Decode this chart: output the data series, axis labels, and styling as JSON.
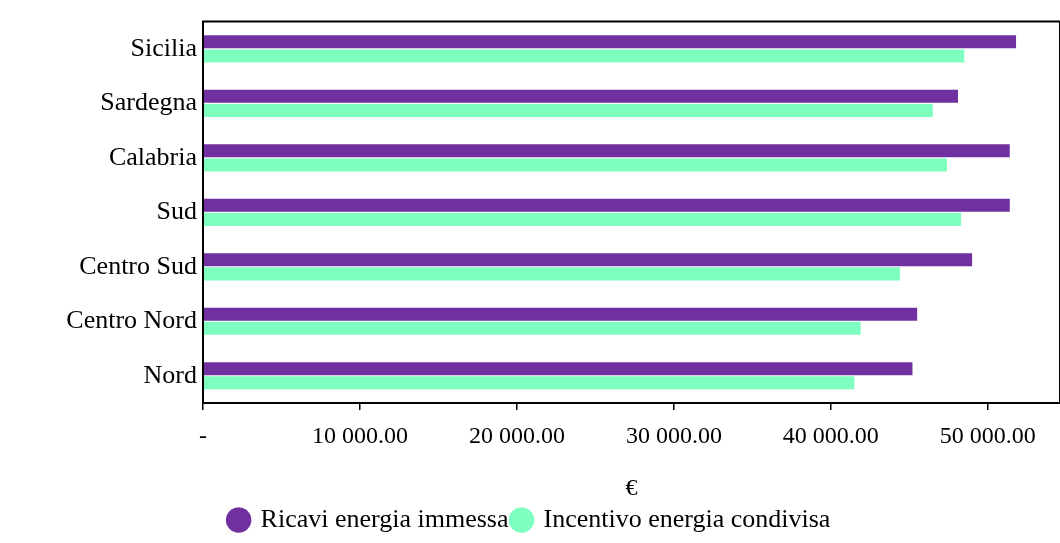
{
  "chart_data": {
    "type": "bar",
    "orientation": "horizontal",
    "xlabel": "€",
    "categories": [
      "Sicilia",
      "Sardegna",
      "Calabria",
      "Sud",
      "Centro Sud",
      "Centro Nord",
      "Nord"
    ],
    "series": [
      {
        "name": "Ricavi energia immessa",
        "color": "#7030a0",
        "values": [
          51800,
          48100,
          51400,
          51400,
          49000,
          45500,
          45200
        ]
      },
      {
        "name": "Incentivo energia condivisa",
        "color": "#7fffbf",
        "values": [
          48500,
          46500,
          47400,
          48300,
          44400,
          41900,
          41500
        ]
      }
    ],
    "xlim": [
      0,
      54600
    ],
    "xticks": [
      {
        "value": 0,
        "label": "-"
      },
      {
        "value": 10000,
        "label": "10 000.00"
      },
      {
        "value": 20000,
        "label": "20 000.00"
      },
      {
        "value": 30000,
        "label": "30 000.00"
      },
      {
        "value": 40000,
        "label": "40 000.00"
      },
      {
        "value": 50000,
        "label": "50 000.00"
      }
    ],
    "grid": false,
    "legend": "bottom"
  }
}
